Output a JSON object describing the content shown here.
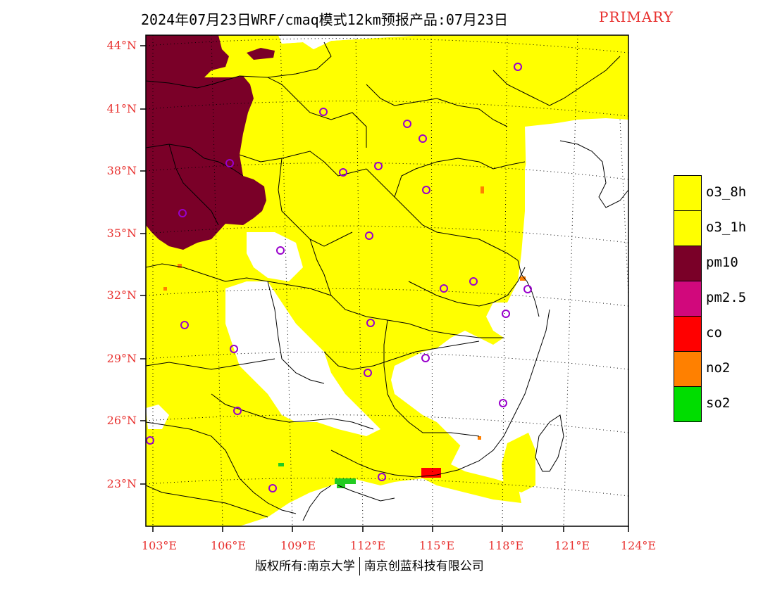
{
  "title": {
    "main": "2024年07月23日WRF/cmaq模式12km预报产品:07月23日",
    "tag": "PRIMARY"
  },
  "axes": {
    "lat_labels": [
      "44°N",
      "41°N",
      "38°N",
      "35°N",
      "32°N",
      "29°N",
      "26°N",
      "23°N"
    ],
    "lon_labels": [
      "103°E",
      "106°E",
      "109°E",
      "112°E",
      "115°E",
      "118°E",
      "121°E",
      "124°E"
    ]
  },
  "legend": {
    "items": [
      {
        "label": "o3_8h",
        "color": "#ffff00"
      },
      {
        "label": "o3_1h",
        "color": "#ffff00"
      },
      {
        "label": "pm10",
        "color": "#7a0028"
      },
      {
        "label": "pm2.5",
        "color": "#d1087c"
      },
      {
        "label": "co",
        "color": "#ff0000"
      },
      {
        "label": "no2",
        "color": "#ff8000"
      },
      {
        "label": "so2",
        "color": "#00dd00"
      }
    ]
  },
  "copyright": {
    "left": "版权所有:南京大学",
    "right": "南京创蓝科技有限公司"
  },
  "colors": {
    "axis_label": "#e8312f",
    "ozone": "#ffff00",
    "pm10": "#7a0028",
    "station_marker": "#9900cc"
  }
}
